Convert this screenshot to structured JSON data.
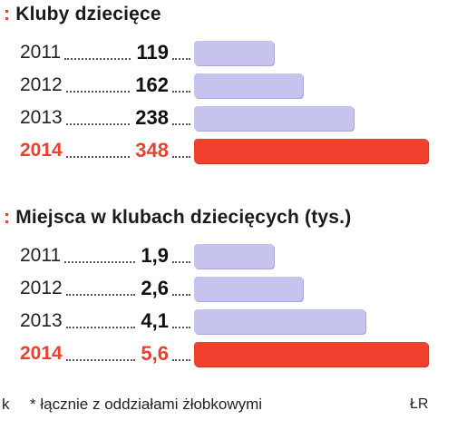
{
  "chart_data": [
    {
      "type": "bar",
      "title": "Kluby dziecięce",
      "categories": [
        "2011",
        "2012",
        "2013",
        "2014"
      ],
      "values": [
        119,
        162,
        238,
        348
      ],
      "value_labels": [
        "119",
        "162",
        "238",
        "348"
      ],
      "highlight_index": 3,
      "xlim": [
        0,
        348
      ]
    },
    {
      "type": "bar",
      "title": "Miejsca w klubach dziecięcych (tys.)",
      "categories": [
        "2011",
        "2012",
        "2013",
        "2014"
      ],
      "values": [
        1.9,
        2.6,
        4.1,
        5.6
      ],
      "value_labels": [
        "1,9",
        "2,6",
        "4,1",
        "5,6"
      ],
      "highlight_index": 3,
      "xlim": [
        0,
        5.6
      ]
    }
  ],
  "footer": {
    "left_fragment": "k",
    "footnote": "* łącznie z oddziałami żłobkowymi",
    "source": "ŁR"
  },
  "colors": {
    "bar": "#c6c4ee",
    "highlight": "#f0412f",
    "marker": "#e8412f"
  }
}
